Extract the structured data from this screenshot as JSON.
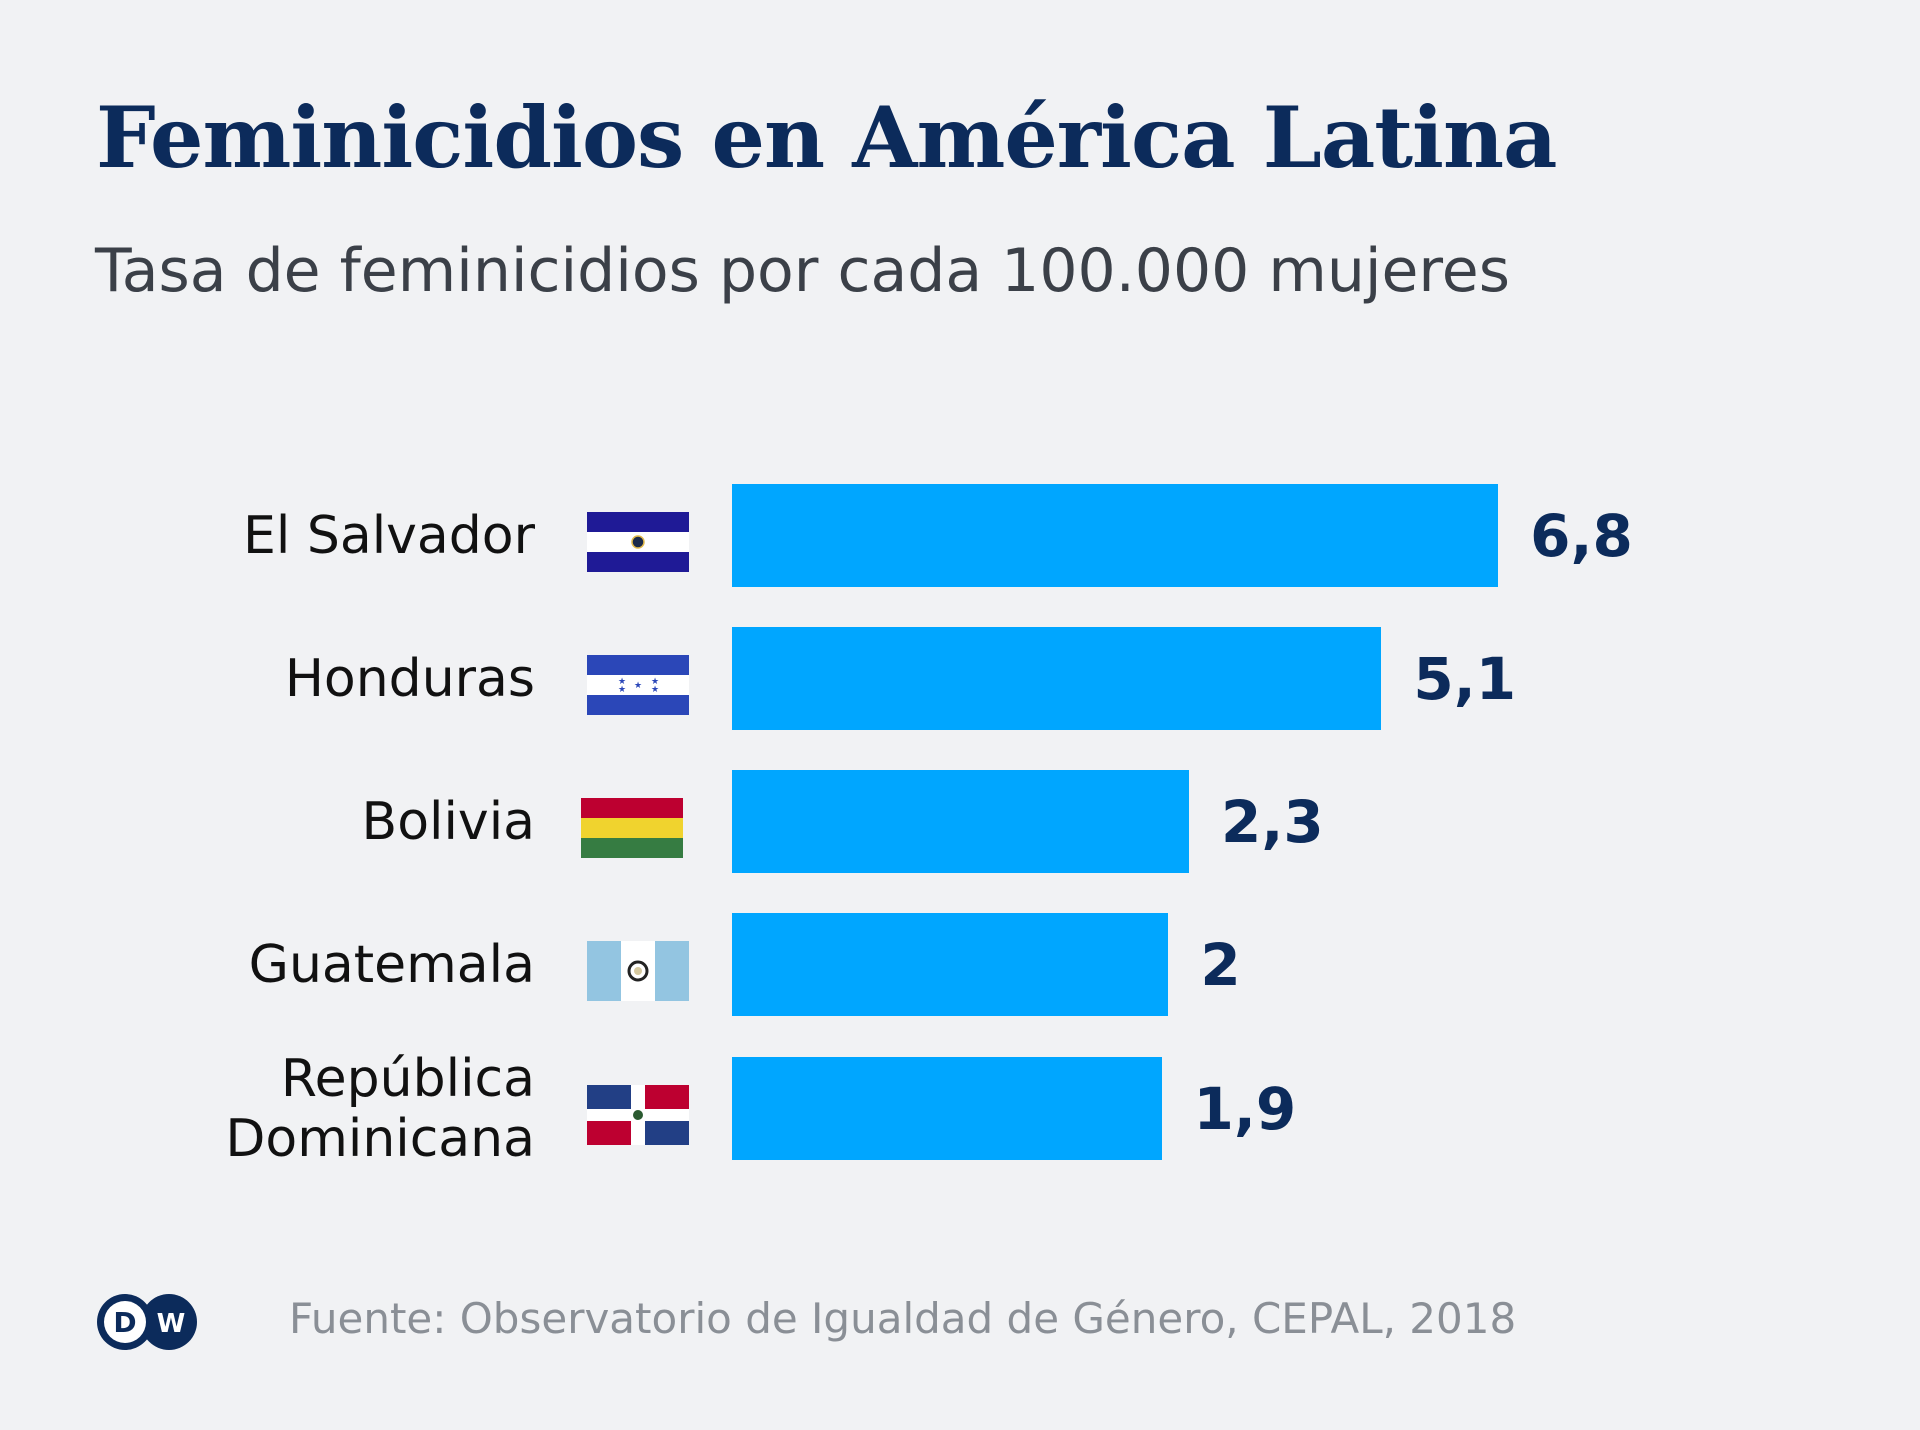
{
  "chart_data": {
    "type": "bar",
    "orientation": "horizontal",
    "title": "Feminicidios en América Latina",
    "subtitle": "Tasa de feminicidios por cada 100.000 mujeres",
    "categories": [
      "El Salvador",
      "Honduras",
      "Bolivia",
      "Guatemala",
      "República Dominicana"
    ],
    "values": [
      6.8,
      5.1,
      2.3,
      2,
      1.9
    ],
    "value_labels": [
      "6,8",
      "5,1",
      "2,3",
      "2",
      "1,9"
    ],
    "flags": [
      "el-salvador-flag",
      "honduras-flag",
      "bolivia-flag",
      "guatemala-flag",
      "dominican-republic-flag"
    ],
    "bar_color": "#00a6ff",
    "grid": false,
    "xlabel": "",
    "ylabel": ""
  },
  "footer": {
    "source": "Fuente: Observatorio de Igualdad de Género, CEPAL, 2018",
    "logo": "DW"
  }
}
